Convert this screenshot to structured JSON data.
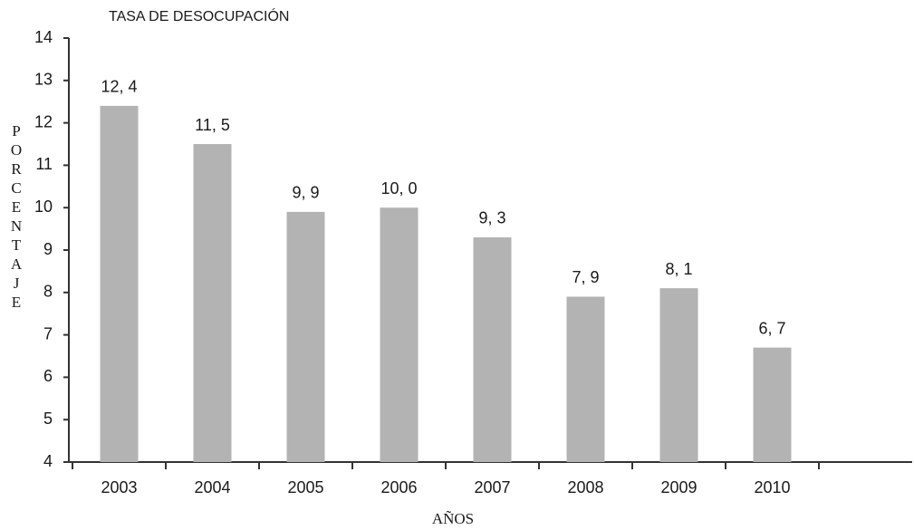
{
  "chart_data": {
    "type": "bar",
    "title": "TASA DE DESOCUPACIÓN",
    "x_label": "AÑOS",
    "y_label": "PORCENTAJE",
    "categories": [
      "2003",
      "2004",
      "2005",
      "2006",
      "2007",
      "2008",
      "2009",
      "2010"
    ],
    "values": [
      12.4,
      11.5,
      9.9,
      10.0,
      9.3,
      7.9,
      8.1,
      6.7
    ],
    "value_labels": [
      "12, 4",
      "11, 5",
      "9, 9",
      "10, 0",
      "9, 3",
      "7, 9",
      "8, 1",
      "6, 7"
    ],
    "color": "#b3b3b3",
    "ylim": [
      4,
      14
    ],
    "yticks": [
      4,
      5,
      6,
      7,
      8,
      9,
      10,
      11,
      12,
      13,
      14
    ],
    "grid": false
  }
}
